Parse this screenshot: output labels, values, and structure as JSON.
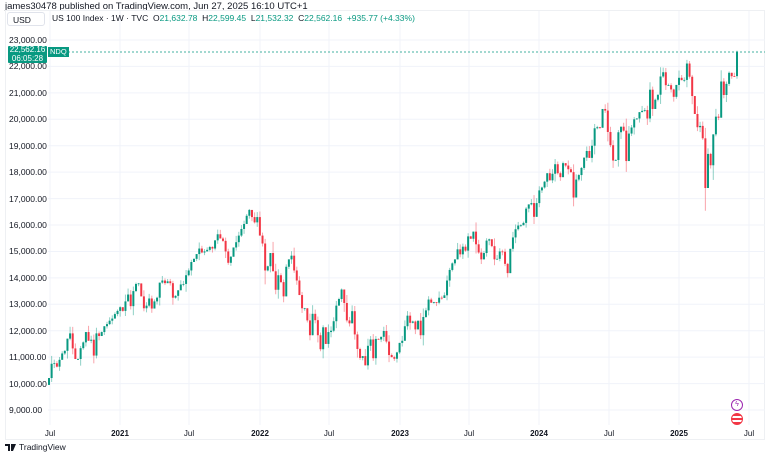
{
  "publisher_line": "james30478 published on TradingView.com, Jun 27, 2025 16:10 UTC+1",
  "currency_button": "USD",
  "legend": {
    "symbol": "US 100 Index · 1W · TVC",
    "open_label": "O",
    "open": "21,632.78",
    "high_label": "H",
    "high": "22,599.45",
    "low_label": "L",
    "low": "21,532.32",
    "close_label": "C",
    "close": "22,562.16",
    "change": "+935.77 (+4.33%)"
  },
  "price_badge": {
    "price": "22,562.16",
    "countdown": "06:05:28",
    "tag": "NDQ"
  },
  "brand": "TradingView",
  "colors": {
    "up": "#089981",
    "down": "#f23645",
    "grid": "#f0f3fa",
    "text": "#131722"
  },
  "chart_data": {
    "type": "candlestick",
    "interval": "1W",
    "price_axis_side": "left",
    "ylim": [
      8600,
      23500
    ],
    "y_ticks": [
      "23,000.00",
      "22,000.00",
      "21,000.00",
      "20,000.00",
      "19,000.00",
      "18,000.00",
      "17,000.00",
      "16,000.00",
      "15,000.00",
      "14,000.00",
      "13,000.00",
      "12,000.00",
      "11,000.00",
      "10,000.00",
      "9,000.00"
    ],
    "y_tick_values": [
      23000,
      22000,
      21000,
      20000,
      19000,
      18000,
      17000,
      16000,
      15000,
      14000,
      13000,
      12000,
      11000,
      10000,
      9000
    ],
    "x_ticks": [
      "Jul",
      "2021",
      "Jul",
      "2022",
      "Jul",
      "2023",
      "Jul",
      "2024",
      "Jul",
      "2025",
      "Jul"
    ],
    "x_range": [
      "2020-06-29",
      "2025-06-23"
    ],
    "first_open": 9950,
    "last_candle": {
      "open": 21632.78,
      "high": 22599.45,
      "low": 21532.32,
      "close": 22562.16
    },
    "weekly_closes": [
      10210,
      10750,
      10770,
      10640,
      10900,
      11140,
      11240,
      11700,
      11900,
      11330,
      10930,
      10930,
      11340,
      11560,
      11950,
      11620,
      11660,
      11060,
      11900,
      11800,
      11950,
      12170,
      12250,
      12380,
      12460,
      12630,
      12750,
      12890,
      12750,
      13110,
      13370,
      12930,
      13500,
      13770,
      13790,
      13300,
      12850,
      12950,
      13220,
      12840,
      13110,
      13250,
      13820,
      13900,
      13800,
      13870,
      13800,
      13250,
      13320,
      13530,
      13750,
      13770,
      14100,
      14280,
      14600,
      14720,
      14900,
      15110,
      14960,
      15000,
      15060,
      15170,
      15110,
      15420,
      15650,
      15490,
      15400,
      15000,
      14570,
      14800,
      15150,
      15350,
      15600,
      15850,
      16040,
      16350,
      16570,
      16300,
      16100,
      16300,
      15600,
      15300,
      14280,
      14440,
      14940,
      14250,
      13550,
      14100,
      13840,
      13300,
      14420,
      14700,
      14840,
      14280,
      13900,
      13350,
      12850,
      12850,
      12390,
      11830,
      12640,
      12400,
      11830,
      11300,
      12130,
      11500,
      11950,
      12000,
      12360,
      12950,
      13200,
      13560,
      13050,
      12390,
      12280,
      12740,
      11860,
      11310,
      10970,
      11040,
      10690,
      11430,
      11670,
      10960,
      11690,
      11670,
      11770,
      11990,
      11590,
      11080,
      11000,
      10940,
      11180,
      11540,
      11620,
      12170,
      12570,
      12300,
      12350,
      12050,
      12380,
      11830,
      12520,
      12770,
      13180,
      13060,
      13080,
      13060,
      13250,
      13240,
      13340,
      13900,
      14300,
      14550,
      14700,
      15080,
      14890,
      15180,
      15030,
      15570,
      15480,
      15750,
      15270,
      14960,
      14700,
      14940,
      15410,
      15460,
      15200,
      14700,
      14720,
      15000,
      14990,
      14530,
      14180,
      15100,
      15530,
      15840,
      15980,
      15990,
      16080,
      16620,
      16780,
      16830,
      16310,
      16830,
      17310,
      17420,
      17640,
      17960,
      17690,
      17940,
      18300,
      17960,
      17810,
      18340,
      18250,
      18110,
      18000,
      17040,
      17720,
      17890,
      18160,
      18550,
      18800,
      18540,
      19000,
      19660,
      19700,
      19680,
      20390,
      20330,
      19520,
      19020,
      18440,
      18460,
      19510,
      19720,
      19570,
      18420,
      19460,
      19690,
      20000,
      20030,
      20270,
      20320,
      20350,
      20030,
      21120,
      20390,
      20740,
      20930,
      21620,
      21780,
      21290,
      21290,
      21130,
      20850,
      21300,
      21570,
      21480,
      21490,
      22110,
      21610,
      20880,
      20200,
      19700,
      19750,
      19280,
      17400,
      18690,
      18260,
      19430,
      20100,
      20060,
      21430,
      20920,
      21340,
      21760,
      21630,
      21626.39,
      22562.16
    ]
  }
}
